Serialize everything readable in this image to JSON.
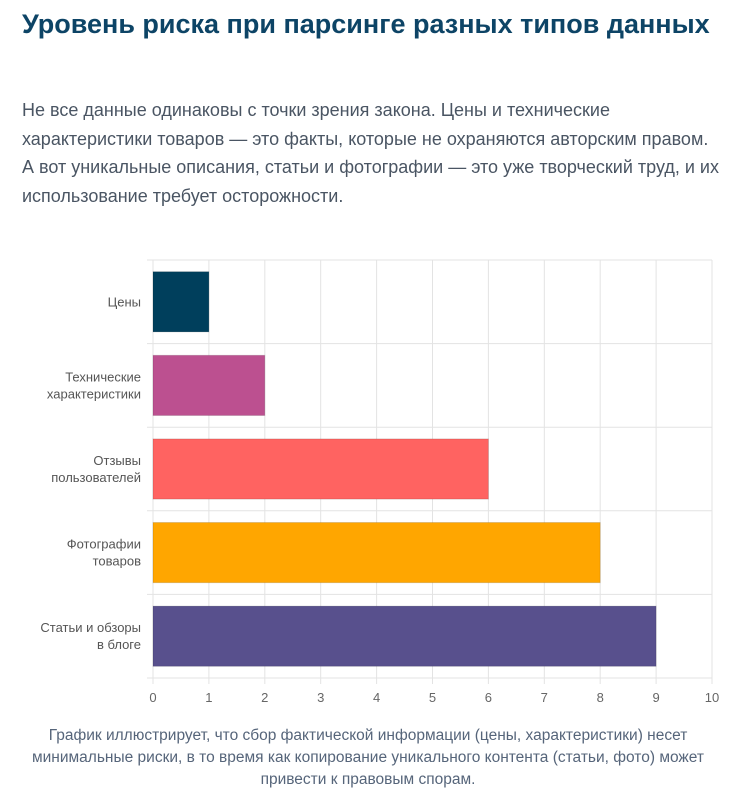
{
  "header": {
    "title": "Уровень риска при парсинге разных типов данных",
    "intro": "Не все данные одинаковы с точки зрения закона. Цены и технические характеристики товаров — это факты, которые не охраняются авторским правом. А вот уникальные описания, статьи и фотографии — это уже творческий труд, и их использование требует осторожности."
  },
  "chart_data": {
    "type": "bar",
    "orientation": "horizontal",
    "categories": [
      [
        "Цены"
      ],
      [
        "Технические",
        "характеристики"
      ],
      [
        "Отзывы",
        "пользователей"
      ],
      [
        "Фотографии",
        "товаров"
      ],
      [
        "Статьи и обзоры",
        "в блоге"
      ]
    ],
    "values": [
      1,
      2,
      6,
      8,
      9
    ],
    "colors": [
      "#003f5c",
      "#bc5090",
      "#ff6361",
      "#ffa600",
      "#58508d"
    ],
    "xlim": [
      0,
      10
    ],
    "xticks": [
      "0",
      "1",
      "2",
      "3",
      "4",
      "5",
      "6",
      "7",
      "8",
      "9",
      "10"
    ],
    "grid": true,
    "title": "",
    "xlabel": "",
    "ylabel": ""
  },
  "footer": {
    "caption": "График иллюстрирует, что сбор фактической информации (цены, характеристики) несет минимальные риски, в то время как копирование уникального контента (статьи, фото) может привести к правовым спорам."
  }
}
